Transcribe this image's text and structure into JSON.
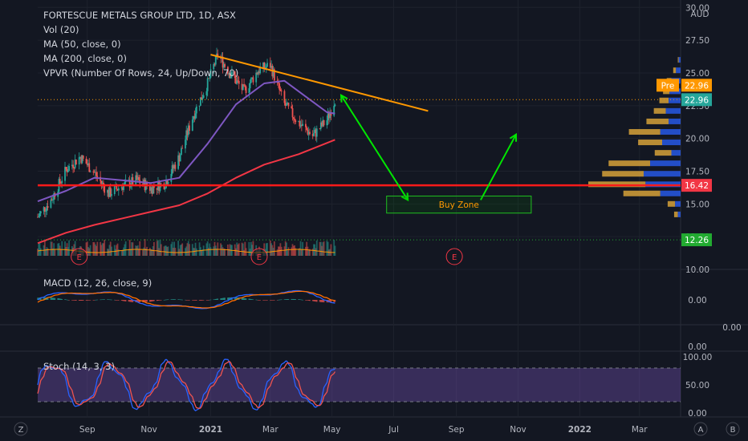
{
  "symbol_title": "FORTESCUE METALS GROUP LTD, 1D, ASX",
  "currency": "AUD",
  "indicators": [
    "Vol (20)",
    "MA (50, close, 0)",
    "MA (200, close, 0)",
    "VPVR (Number Of Rows, 24, Up/Down, 70)"
  ],
  "macd_label": "MACD (12, 26, close, 9)",
  "stoch_label": "Stoch (14, 3, 3)",
  "annotation": {
    "buy_zone": "Buy Zone"
  },
  "earnings_marker": "E",
  "corner_labels": {
    "bottom_left": "Z",
    "bottom_right_a": "A",
    "bottom_right_b": "B"
  },
  "price_badges": [
    {
      "label": "Pre",
      "value": "22.96",
      "color": "#ff9800"
    },
    {
      "label": "",
      "value": "22.96",
      "color": "#26a69a"
    },
    {
      "label": "",
      "value": "16.42",
      "color": "#f23645"
    },
    {
      "label": "",
      "value": "12.26",
      "color": "#22ab31"
    }
  ],
  "colors": {
    "ma50": "#7e57c2",
    "ma200": "#f23645",
    "trendline": "#ff9800",
    "arrows": "#00e600",
    "support": "#ff1a1a",
    "up": "#26a69a",
    "down": "#ef5350",
    "stoch_k": "#2962ff",
    "stoch_d": "#ef5350",
    "stoch_band": "#7e57c2"
  },
  "chart_data": {
    "type": "candlestick",
    "x_ticks": [
      "Sep",
      "Nov",
      "2021",
      "Mar",
      "May",
      "Jul",
      "Sep",
      "Nov",
      "2022",
      "Mar"
    ],
    "price_axis": {
      "ticks": [
        "30.00",
        "27.50",
        "25.00",
        "22.50",
        "20.00",
        "17.50",
        "15.00",
        "12.50",
        "10.00"
      ],
      "ylim": [
        10,
        30
      ]
    },
    "price_path": [
      [
        "2020-07-14",
        14.0
      ],
      [
        "2020-07-28",
        15.4
      ],
      [
        "2020-08-11",
        17.6
      ],
      [
        "2020-08-25",
        18.6
      ],
      [
        "2020-09-08",
        17.4
      ],
      [
        "2020-09-22",
        15.8
      ],
      [
        "2020-10-06",
        16.4
      ],
      [
        "2020-10-20",
        16.8
      ],
      [
        "2020-11-03",
        16.2
      ],
      [
        "2020-11-17",
        16.6
      ],
      [
        "2020-12-01",
        18.6
      ],
      [
        "2020-12-15",
        21.8
      ],
      [
        "2020-12-29",
        24.2
      ],
      [
        "2021-01-08",
        26.4
      ],
      [
        "2021-01-20",
        25.0
      ],
      [
        "2021-02-03",
        23.6
      ],
      [
        "2021-02-17",
        25.2
      ],
      [
        "2021-03-01",
        25.6
      ],
      [
        "2021-03-15",
        22.6
      ],
      [
        "2021-03-29",
        21.2
      ],
      [
        "2021-04-12",
        20.2
      ],
      [
        "2021-04-26",
        21.4
      ],
      [
        "2021-05-04",
        22.96
      ]
    ],
    "ma50_path": [
      [
        "2020-07-14",
        15.2
      ],
      [
        "2020-08-11",
        16.0
      ],
      [
        "2020-09-08",
        17.0
      ],
      [
        "2020-10-06",
        16.8
      ],
      [
        "2020-11-03",
        16.6
      ],
      [
        "2020-12-01",
        17.0
      ],
      [
        "2020-12-29",
        19.6
      ],
      [
        "2021-01-26",
        22.6
      ],
      [
        "2021-02-23",
        24.2
      ],
      [
        "2021-03-15",
        24.4
      ],
      [
        "2021-04-05",
        23.2
      ],
      [
        "2021-04-26",
        22.0
      ],
      [
        "2021-05-04",
        21.9
      ]
    ],
    "ma200_path": [
      [
        "2020-07-14",
        12.0
      ],
      [
        "2020-08-11",
        12.8
      ],
      [
        "2020-09-08",
        13.4
      ],
      [
        "2020-10-06",
        13.9
      ],
      [
        "2020-11-03",
        14.4
      ],
      [
        "2020-12-01",
        14.9
      ],
      [
        "2020-12-29",
        15.8
      ],
      [
        "2021-01-26",
        17.0
      ],
      [
        "2021-02-23",
        18.0
      ],
      [
        "2021-03-29",
        18.8
      ],
      [
        "2021-05-04",
        19.9
      ]
    ],
    "trendline": [
      [
        "2021-01-01",
        26.4
      ],
      [
        "2021-08-04",
        22.1
      ]
    ],
    "support_level": 16.42,
    "dotted_levels": [
      22.96,
      12.26
    ],
    "arrows": [
      {
        "from": [
          "2021-05-10",
          23.3
        ],
        "to": [
          "2021-07-15",
          15.3
        ]
      },
      {
        "from": [
          "2021-09-25",
          15.3
        ],
        "to": [
          "2021-10-30",
          20.3
        ]
      }
    ],
    "buy_zone": {
      "x": [
        "2021-06-24",
        "2021-11-14"
      ],
      "y": [
        15.6,
        14.3
      ]
    },
    "volume_profile": [
      {
        "price": 26.0,
        "up": 0.01,
        "down": 0.02
      },
      {
        "price": 25.2,
        "up": 0.03,
        "down": 0.05
      },
      {
        "price": 24.4,
        "up": 0.05,
        "down": 0.1
      },
      {
        "price": 23.6,
        "up": 0.07,
        "down": 0.12
      },
      {
        "price": 22.9,
        "up": 0.1,
        "down": 0.13
      },
      {
        "price": 22.1,
        "up": 0.13,
        "down": 0.16
      },
      {
        "price": 21.3,
        "up": 0.24,
        "down": 0.13
      },
      {
        "price": 20.5,
        "up": 0.34,
        "down": 0.22
      },
      {
        "price": 19.7,
        "up": 0.26,
        "down": 0.2
      },
      {
        "price": 18.9,
        "up": 0.18,
        "down": 0.1
      },
      {
        "price": 18.1,
        "up": 0.45,
        "down": 0.33
      },
      {
        "price": 17.3,
        "up": 0.45,
        "down": 0.4
      },
      {
        "price": 16.5,
        "up": 0.62,
        "down": 0.38
      },
      {
        "price": 15.8,
        "up": 0.4,
        "down": 0.22
      },
      {
        "price": 15.0,
        "up": 0.08,
        "down": 0.06
      },
      {
        "price": 14.2,
        "up": 0.04,
        "down": 0.03
      }
    ],
    "earnings_dates": [
      "2020-08-24",
      "2021-02-18",
      "2021-08-30"
    ],
    "macd_axis": {
      "ticks": [
        "0.00"
      ]
    },
    "mid_axis": {
      "ticks": [
        "0.00",
        "0.00"
      ]
    },
    "stoch_axis": {
      "ticks": [
        "100.00",
        "50.00",
        "0.00"
      ],
      "ylim": [
        0,
        100
      ],
      "bands": [
        20,
        80
      ]
    }
  }
}
